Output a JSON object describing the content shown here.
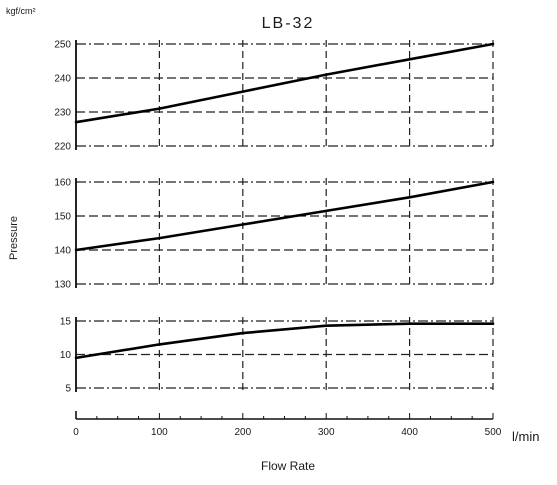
{
  "chart_data": {
    "type": "line",
    "title": "LB-32",
    "xlabel": "Flow Rate",
    "xunit": "l/min",
    "ylabel": "Pressure",
    "yunit": "kgf/cm²",
    "x_ticks": [
      "0",
      "100",
      "200",
      "300",
      "400",
      "500"
    ],
    "xlim": [
      0,
      500
    ],
    "grid": true,
    "panels": [
      {
        "ylim": [
          220,
          250
        ],
        "y_ticks": [
          "220",
          "230",
          "240",
          "250"
        ],
        "series": [
          {
            "x": [
              0,
              100,
              200,
              300,
              400,
              500
            ],
            "y": [
              227,
              231,
              236,
              241,
              245.5,
              250
            ]
          }
        ]
      },
      {
        "ylim": [
          130,
          160
        ],
        "y_ticks": [
          "130",
          "140",
          "150",
          "160"
        ],
        "series": [
          {
            "x": [
              0,
              100,
              200,
              300,
              400,
              500
            ],
            "y": [
              140,
              143.5,
              147.5,
              151.5,
              155.5,
              160
            ]
          }
        ]
      },
      {
        "ylim": [
          5,
          15
        ],
        "y_ticks": [
          "5",
          "10",
          "15"
        ],
        "series": [
          {
            "x": [
              0,
              100,
              200,
              300,
              400,
              500
            ],
            "y": [
              9.5,
              11.5,
              13.2,
              14.3,
              14.6,
              14.6
            ]
          }
        ]
      }
    ]
  }
}
